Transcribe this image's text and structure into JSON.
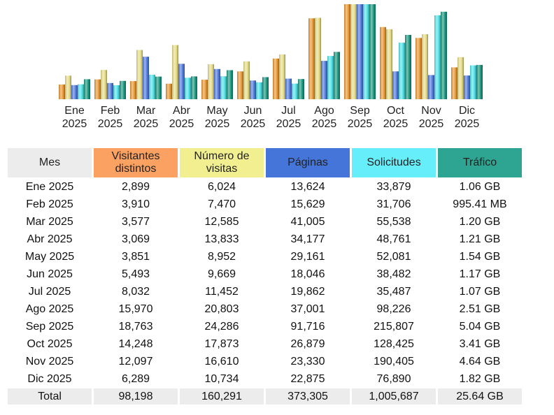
{
  "chart_data": {
    "type": "bar",
    "title": "",
    "xlabel": "",
    "ylabel": "",
    "categories": [
      "Ene 2025",
      "Feb 2025",
      "Mar 2025",
      "Abr 2025",
      "May 2025",
      "Jun 2025",
      "Jul 2025",
      "Ago 2025",
      "Sep 2025",
      "Oct 2025",
      "Nov 2025",
      "Dic 2025"
    ],
    "category_labels": [
      [
        "Ene",
        "2025"
      ],
      [
        "Feb",
        "2025"
      ],
      [
        "Mar",
        "2025"
      ],
      [
        "Abr",
        "2025"
      ],
      [
        "May",
        "2025"
      ],
      [
        "Jun",
        "2025"
      ],
      [
        "Jul",
        "2025"
      ],
      [
        "Ago",
        "2025"
      ],
      [
        "Sep",
        "2025"
      ],
      [
        "Oct",
        "2025"
      ],
      [
        "Nov",
        "2025"
      ],
      [
        "Dic",
        "2025"
      ]
    ],
    "scaling": "each series normalized to its own maximum",
    "grid": false,
    "legend": "none",
    "series": [
      {
        "name": "Visitantes distintos",
        "color": "#e8952f",
        "values": [
          2899,
          3910,
          3577,
          3069,
          3851,
          5493,
          8032,
          15970,
          18763,
          14248,
          12097,
          6289
        ]
      },
      {
        "name": "Número de visitas",
        "color": "#e6dc86",
        "values": [
          6024,
          7470,
          12585,
          13833,
          8952,
          9669,
          11452,
          20803,
          24286,
          17873,
          16610,
          10734
        ]
      },
      {
        "name": "Páginas",
        "color": "#4f78dc",
        "values": [
          13624,
          15629,
          41005,
          34177,
          29161,
          18046,
          19862,
          37001,
          91716,
          26879,
          23330,
          22875
        ]
      },
      {
        "name": "Solicitudes",
        "color": "#4fe2e8",
        "values": [
          33879,
          31706,
          55538,
          48761,
          52081,
          38482,
          35487,
          98226,
          215807,
          128425,
          190405,
          76890
        ]
      },
      {
        "name": "Tráfico",
        "color": "#17957c",
        "unit": "GB",
        "values": [
          1.06,
          0.972,
          1.2,
          1.21,
          1.54,
          1.17,
          1.07,
          2.51,
          5.04,
          3.41,
          4.64,
          1.82
        ]
      }
    ]
  },
  "table": {
    "headers": {
      "mes": "Mes",
      "visitors": [
        "Visitantes",
        "distintos"
      ],
      "visits": [
        "Número de",
        "visitas"
      ],
      "pages": "Páginas",
      "hits": "Solicitudes",
      "traffic": "Tráfico"
    },
    "rows": [
      [
        "Ene 2025",
        "2,899",
        "6,024",
        "13,624",
        "33,879",
        "1.06 GB"
      ],
      [
        "Feb 2025",
        "3,910",
        "7,470",
        "15,629",
        "31,706",
        "995.41 MB"
      ],
      [
        "Mar 2025",
        "3,577",
        "12,585",
        "41,005",
        "55,538",
        "1.20 GB"
      ],
      [
        "Abr 2025",
        "3,069",
        "13,833",
        "34,177",
        "48,761",
        "1.21 GB"
      ],
      [
        "May 2025",
        "3,851",
        "8,952",
        "29,161",
        "52,081",
        "1.54 GB"
      ],
      [
        "Jun 2025",
        "5,493",
        "9,669",
        "18,046",
        "38,482",
        "1.17 GB"
      ],
      [
        "Jul 2025",
        "8,032",
        "11,452",
        "19,862",
        "35,487",
        "1.07 GB"
      ],
      [
        "Ago 2025",
        "15,970",
        "20,803",
        "37,001",
        "98,226",
        "2.51 GB"
      ],
      [
        "Sep 2025",
        "18,763",
        "24,286",
        "91,716",
        "215,807",
        "5.04 GB"
      ],
      [
        "Oct 2025",
        "14,248",
        "17,873",
        "26,879",
        "128,425",
        "3.41 GB"
      ],
      [
        "Nov 2025",
        "12,097",
        "16,610",
        "23,330",
        "190,405",
        "4.64 GB"
      ],
      [
        "Dic 2025",
        "6,289",
        "10,734",
        "22,875",
        "76,890",
        "1.82 GB"
      ]
    ],
    "total": [
      "Total",
      "98,198",
      "160,291",
      "373,305",
      "1,005,687",
      "25.64 GB"
    ]
  }
}
